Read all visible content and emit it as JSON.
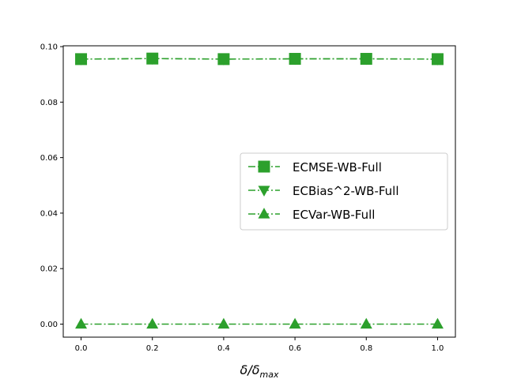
{
  "chart_data": {
    "type": "line",
    "title": "",
    "xlabel": "δ/δ",
    "xlabel_subscript": "max",
    "ylabel": "",
    "xlim": [
      -0.05,
      1.05
    ],
    "ylim": [
      -0.0047,
      0.1003
    ],
    "x_ticks": [
      0.0,
      0.2,
      0.4,
      0.6,
      0.8,
      1.0
    ],
    "x_tick_labels": [
      "0.0",
      "0.2",
      "0.4",
      "0.6",
      "0.8",
      "1.0"
    ],
    "y_ticks": [
      0.0,
      0.02,
      0.04,
      0.06,
      0.08,
      0.1
    ],
    "y_tick_labels": [
      "0.00",
      "0.02",
      "0.04",
      "0.06",
      "0.08",
      "0.10"
    ],
    "grid": false,
    "legend_position": "center-right",
    "x": [
      0.0,
      0.2,
      0.4,
      0.6,
      0.8,
      1.0
    ],
    "series": [
      {
        "name": "ECMSE-WB-Full",
        "marker": "square",
        "color": "#2ca02c",
        "values": [
          0.0955,
          0.0957,
          0.0955,
          0.0956,
          0.0956,
          0.0955
        ]
      },
      {
        "name": "ECBias^2-WB-Full",
        "marker": "triangle-down",
        "color": "#2ca02c",
        "values": [
          0.0955,
          0.0957,
          0.0955,
          0.0956,
          0.0956,
          0.0955
        ]
      },
      {
        "name": "ECVar-WB-Full",
        "marker": "triangle-up",
        "color": "#2ca02c",
        "values": [
          0.0,
          0.0,
          0.0,
          0.0,
          0.0,
          0.0
        ]
      }
    ]
  }
}
